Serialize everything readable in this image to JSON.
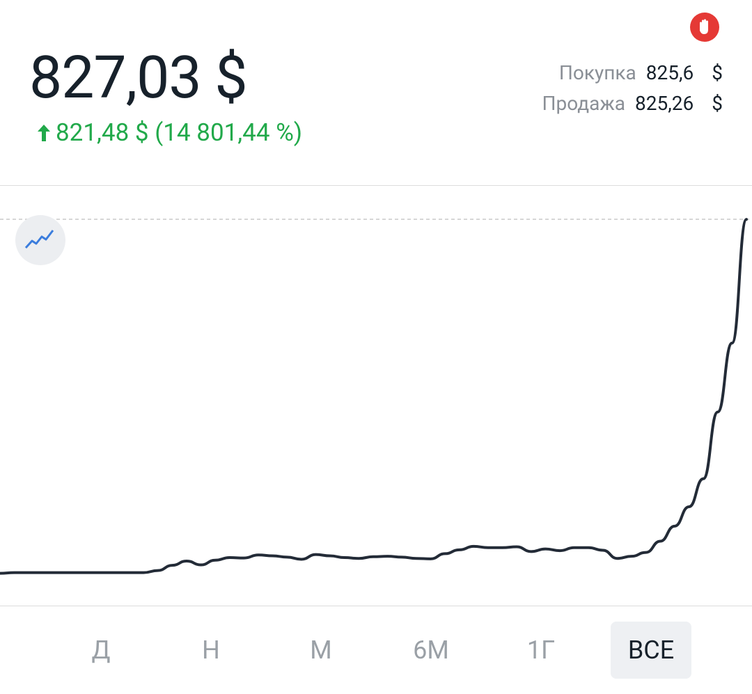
{
  "header": {
    "price": "827,03 $",
    "change": "821,48 $ (14 801,44 %)"
  },
  "quotes": [
    {
      "label": "Покупка",
      "value": "825,6",
      "currency": "$"
    },
    {
      "label": "Продажа",
      "value": "825,26",
      "currency": "$"
    }
  ],
  "chart_data": {
    "type": "line",
    "color": "#232b37",
    "values": [
      5.55,
      7,
      7,
      7,
      7,
      7,
      7,
      7,
      7,
      7,
      7,
      12,
      24,
      34,
      25,
      36,
      42,
      41,
      48,
      46,
      43,
      38,
      49,
      46,
      42,
      40,
      44,
      45,
      43,
      40,
      39,
      51,
      60,
      68,
      65,
      65,
      67,
      56,
      62,
      58,
      65,
      65,
      59,
      40,
      45,
      54,
      80,
      115,
      160,
      225,
      380,
      540,
      827.03
    ],
    "ylim": [
      0,
      900
    ]
  },
  "periods": [
    "Д",
    "Н",
    "М",
    "6М",
    "1Г",
    "ВСЕ"
  ],
  "selected_period": 5
}
